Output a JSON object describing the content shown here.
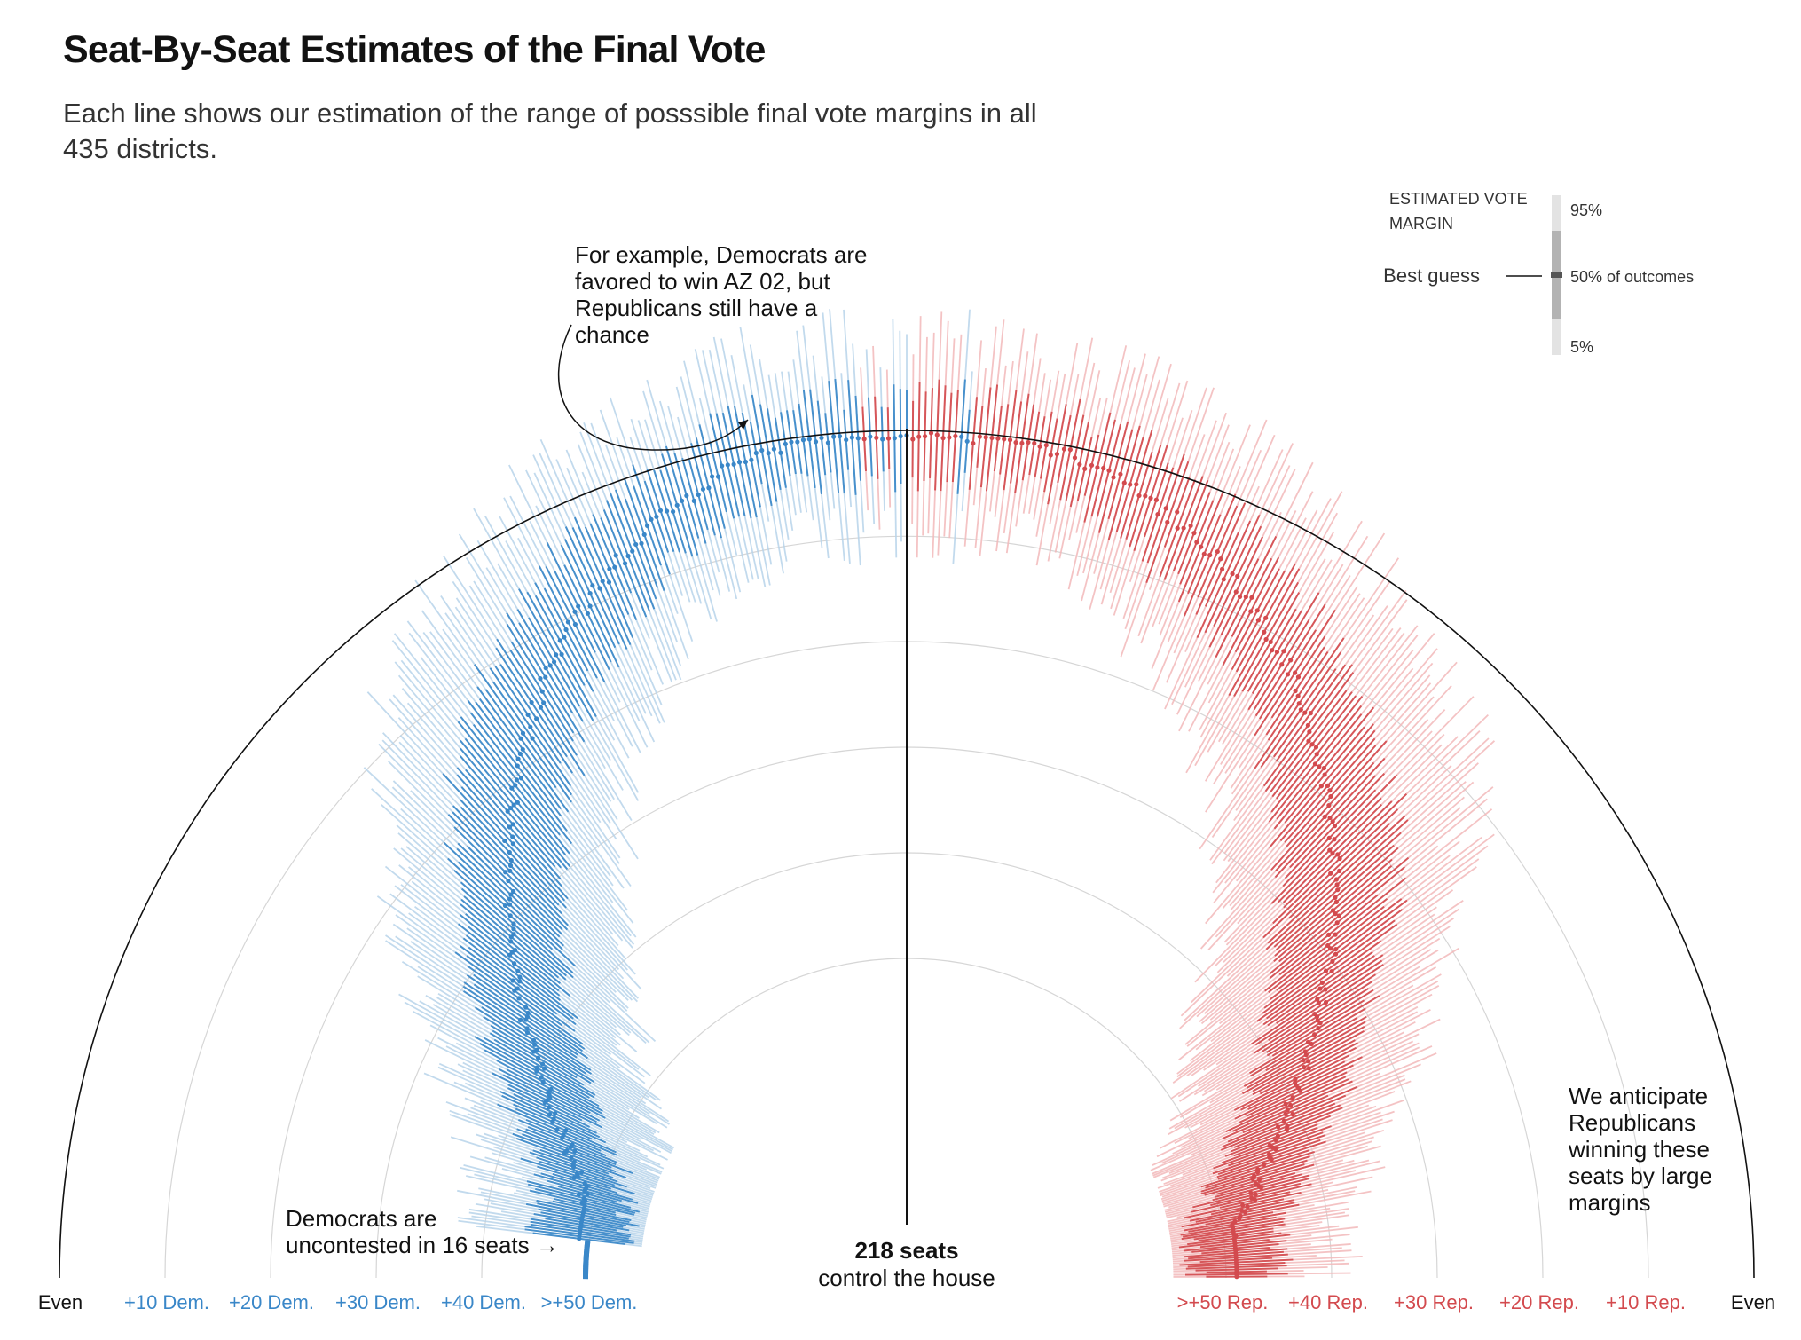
{
  "title": "Seat-By-Seat Estimates of the Final Vote",
  "subtitle": "Each line shows our estimation of the range of posssible final vote margins in all 435 districts.",
  "colors": {
    "dem": "#3a87c8",
    "dem_light": "#b7d3ea",
    "rep": "#d34a4e",
    "rep_light": "#f2b8ba",
    "axis": "#121212",
    "grid": "#d6d6d6"
  },
  "legend": {
    "heading_line1": "ESTIMATED VOTE",
    "heading_line2": "MARGIN",
    "p95": "95%",
    "p50": "50% of outcomes",
    "p5": "5%",
    "best_guess": "Best guess"
  },
  "annotations": {
    "az02_line1": "For example, Democrats are",
    "az02_line2": "favored to win AZ 02, but",
    "az02_line3": "Republicans still have a",
    "az02_line4": "chance",
    "dem_line1": "Democrats are",
    "dem_line2": "uncontested in 16 seats →",
    "rep_line1": "We anticipate",
    "rep_line2": "Republicans",
    "rep_line3": "winning these",
    "rep_line4": "seats by large",
    "rep_line5": "margins",
    "center_bold": "218 seats",
    "center_sub": "control the house"
  },
  "chart_data": {
    "type": "radial range chart",
    "title": "Seat-By-Seat Estimates of the Final Vote",
    "total_seats": 435,
    "majority_seats": 218,
    "uncontested_dem_seats": 16,
    "radial_axis": {
      "domain": "vote margin",
      "ticks_left": [
        "Even",
        "+10 Dem.",
        "+20 Dem.",
        "+30 Dem.",
        "+40 Dem.",
        ">+50 Dem."
      ],
      "ticks_right": [
        ">+50 Rep.",
        "+40 Rep.",
        "+30 Rep.",
        "+20 Rep.",
        "+10 Rep.",
        "Even"
      ],
      "gridlines": [
        10,
        20,
        30,
        40,
        50
      ]
    },
    "angular_axis": "seats ordered from safest Democratic (left) to safest Republican (right)",
    "legend": [
      "95%",
      "50% of outcomes",
      "5%",
      "Best guess"
    ]
  }
}
